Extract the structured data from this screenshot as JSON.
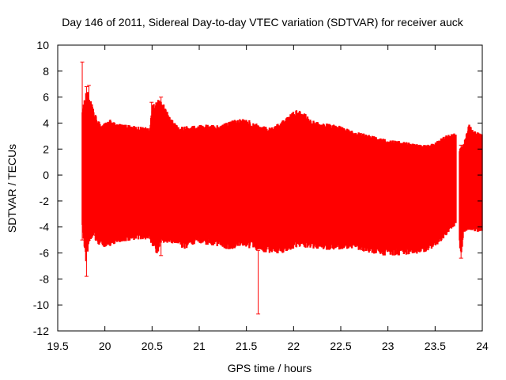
{
  "chart_data": {
    "type": "scatter",
    "style": "error-bars",
    "title": "Day 146 of 2011, Sidereal Day-to-day VTEC variation (SDTVAR) for receiver auck",
    "xlabel": "GPS time / hours",
    "ylabel": "SDTVAR / TECUs",
    "xlim": [
      19.5,
      24
    ],
    "ylim": [
      -12,
      10
    ],
    "xticks": [
      19.5,
      20,
      20.5,
      21,
      21.5,
      22,
      22.5,
      23,
      23.5,
      24
    ],
    "xtick_labels": [
      "19.5",
      "20",
      "20.5",
      "21",
      "21.5",
      "22",
      "22.5",
      "23",
      "23.5",
      "24"
    ],
    "yticks": [
      -12,
      -10,
      -8,
      -6,
      -4,
      -2,
      0,
      2,
      4,
      6,
      8,
      10
    ],
    "ytick_labels": [
      "-12",
      "-10",
      "-8",
      "-6",
      "-4",
      "-2",
      "0",
      "2",
      "4",
      "6",
      "8",
      "10"
    ],
    "grid": false,
    "color": "#ff0000",
    "series": [
      {
        "name": "SDTVAR",
        "x_start": 19.75,
        "x_end": 24.0,
        "x_step": 0.0042,
        "center": 0,
        "gaps": [
          [
            19.73,
            19.76
          ],
          [
            23.72,
            23.76
          ]
        ],
        "upper_envelope": [
          [
            19.75,
            4.5
          ],
          [
            19.78,
            5.9
          ],
          [
            19.81,
            6.7
          ],
          [
            19.83,
            6.0
          ],
          [
            19.85,
            5.8
          ],
          [
            19.88,
            5.0
          ],
          [
            19.92,
            4.3
          ],
          [
            19.98,
            4.0
          ],
          [
            20.05,
            4.3
          ],
          [
            20.12,
            4.0
          ],
          [
            20.2,
            3.9
          ],
          [
            20.3,
            3.8
          ],
          [
            20.45,
            3.7
          ],
          [
            20.48,
            3.8
          ],
          [
            20.5,
            5.3
          ],
          [
            20.52,
            5.6
          ],
          [
            20.55,
            5.7
          ],
          [
            20.58,
            5.9
          ],
          [
            20.62,
            5.5
          ],
          [
            20.7,
            4.4
          ],
          [
            20.8,
            3.7
          ],
          [
            20.9,
            3.8
          ],
          [
            21.0,
            3.9
          ],
          [
            21.2,
            3.9
          ],
          [
            21.3,
            4.1
          ],
          [
            21.45,
            4.4
          ],
          [
            21.55,
            4.2
          ],
          [
            21.65,
            3.8
          ],
          [
            21.75,
            3.7
          ],
          [
            21.85,
            4.0
          ],
          [
            21.95,
            4.6
          ],
          [
            22.02,
            5.0
          ],
          [
            22.1,
            4.9
          ],
          [
            22.18,
            4.3
          ],
          [
            22.3,
            4.0
          ],
          [
            22.45,
            3.9
          ],
          [
            22.6,
            3.5
          ],
          [
            22.75,
            3.2
          ],
          [
            22.9,
            2.9
          ],
          [
            23.0,
            2.7
          ],
          [
            23.15,
            2.6
          ],
          [
            23.3,
            2.4
          ],
          [
            23.4,
            2.3
          ],
          [
            23.5,
            2.5
          ],
          [
            23.6,
            3.0
          ],
          [
            23.66,
            3.2
          ],
          [
            23.72,
            3.2
          ],
          [
            23.76,
            2.0
          ],
          [
            23.8,
            2.4
          ],
          [
            23.84,
            3.4
          ],
          [
            23.86,
            3.9
          ],
          [
            23.9,
            3.5
          ],
          [
            23.95,
            3.3
          ],
          [
            24.0,
            3.2
          ]
        ],
        "lower_envelope": [
          [
            19.75,
            -3.0
          ],
          [
            19.78,
            -5.5
          ],
          [
            19.8,
            -6.8
          ],
          [
            19.83,
            -5.3
          ],
          [
            19.88,
            -4.6
          ],
          [
            19.92,
            -5.4
          ],
          [
            19.98,
            -5.7
          ],
          [
            20.05,
            -5.5
          ],
          [
            20.15,
            -5.2
          ],
          [
            20.3,
            -5.0
          ],
          [
            20.45,
            -5.0
          ],
          [
            20.52,
            -5.6
          ],
          [
            20.55,
            -6.2
          ],
          [
            20.6,
            -5.2
          ],
          [
            20.75,
            -5.4
          ],
          [
            20.85,
            -5.7
          ],
          [
            20.9,
            -5.5
          ],
          [
            21.0,
            -5.3
          ],
          [
            21.15,
            -5.5
          ],
          [
            21.3,
            -5.8
          ],
          [
            21.45,
            -5.5
          ],
          [
            21.6,
            -5.8
          ],
          [
            21.75,
            -6.1
          ],
          [
            21.9,
            -6.0
          ],
          [
            22.05,
            -5.5
          ],
          [
            22.2,
            -5.7
          ],
          [
            22.4,
            -5.8
          ],
          [
            22.6,
            -5.7
          ],
          [
            22.8,
            -6.0
          ],
          [
            22.95,
            -6.2
          ],
          [
            23.1,
            -6.2
          ],
          [
            23.3,
            -6.1
          ],
          [
            23.45,
            -5.8
          ],
          [
            23.55,
            -5.2
          ],
          [
            23.65,
            -4.4
          ],
          [
            23.72,
            -3.8
          ],
          [
            23.76,
            -5.5
          ],
          [
            23.78,
            -6.2
          ],
          [
            23.8,
            -4.6
          ],
          [
            23.86,
            -4.2
          ],
          [
            23.92,
            -4.4
          ],
          [
            24.0,
            -4.4
          ]
        ],
        "spikes": [
          {
            "x": 19.76,
            "y_min": -5.0,
            "y_max": 8.7
          },
          {
            "x": 19.805,
            "y_min": -7.8,
            "y_max": 6.8
          },
          {
            "x": 19.83,
            "y_min": -5.0,
            "y_max": 6.9
          },
          {
            "x": 20.495,
            "y_min": -3.0,
            "y_max": 5.6
          },
          {
            "x": 20.595,
            "y_min": -6.2,
            "y_max": 6.0
          },
          {
            "x": 21.625,
            "y_min": -10.7,
            "y_max": -5.8
          },
          {
            "x": 23.775,
            "y_min": -6.4,
            "y_max": 2.3
          }
        ]
      }
    ]
  }
}
